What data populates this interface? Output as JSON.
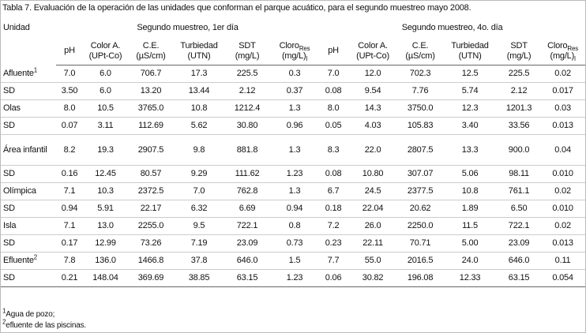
{
  "caption": "Tabla 7. Evaluación de la operación de las unidades que conforman el parque acuático, para el segundo muestreo mayo 2008.",
  "table": {
    "first_header": "Unidad",
    "groups": [
      {
        "title": "Segundo muestreo, 1er día",
        "columns": [
          {
            "name": "pH"
          },
          {
            "name": "Color A.",
            "unit": "(UPt-Co)"
          },
          {
            "name": "C.E.",
            "unit": "(µS/cm)"
          },
          {
            "name": "Turbiedad",
            "unit": "(UTN)"
          },
          {
            "name": "SDT",
            "unit": "(mg/L)"
          },
          {
            "name": "Cloro",
            "sub": "Res",
            "unit": "(mg/L)",
            "unit_sub": "l"
          }
        ]
      },
      {
        "title": "Segundo muestreo, 4o. día",
        "columns": [
          {
            "name": "pH"
          },
          {
            "name": "Color A.",
            "unit": "(UPt-Co)"
          },
          {
            "name": "C.E.",
            "unit": "(µS/cm)"
          },
          {
            "name": "Turbiedad",
            "unit": "(UTN)"
          },
          {
            "name": "SDT",
            "unit": "(mg/L)"
          },
          {
            "name": "Cloro",
            "sub": "Res",
            "unit": "(mg/L)",
            "unit_sub": "l"
          }
        ]
      }
    ],
    "rows": [
      {
        "label": "Afluente",
        "sup": "1",
        "values": [
          "7.0",
          "6.0",
          "706.7",
          "17.3",
          "225.5",
          "0.3",
          "7.0",
          "12.0",
          "702.3",
          "12.5",
          "225.5",
          "0.02"
        ]
      },
      {
        "label": "SD",
        "values": [
          "3.50",
          "6.0",
          "13.20",
          "13.44",
          "2.12",
          "0.37",
          "0.08",
          "9.54",
          "7.76",
          "5.74",
          "2.12",
          "0.017"
        ]
      },
      {
        "label": "Olas",
        "values": [
          "8.0",
          "10.5",
          "3765.0",
          "10.8",
          "1212.4",
          "1.3",
          "8.0",
          "14.3",
          "3750.0",
          "12.3",
          "1201.3",
          "0.03"
        ]
      },
      {
        "label": "SD",
        "values": [
          "0.07",
          "3.11",
          "112.69",
          "5.62",
          "30.80",
          "0.96",
          "0.05",
          "4.03",
          "105.83",
          "3.40",
          "33.56",
          "0.013"
        ]
      },
      {
        "label": "Área infantil",
        "values": [
          "8.2",
          "19.3",
          "2907.5",
          "9.8",
          "881.8",
          "1.3",
          "8.3",
          "22.0",
          "2807.5",
          "13.3",
          "900.0",
          "0.04"
        ]
      },
      {
        "label": "SD",
        "values": [
          "0.16",
          "12.45",
          "80.57",
          "9.29",
          "111.62",
          "1.23",
          "0.08",
          "10.80",
          "307.07",
          "5.06",
          "98.11",
          "0.010"
        ]
      },
      {
        "label": "Olímpica",
        "values": [
          "7.1",
          "10.3",
          "2372.5",
          "7.0",
          "762.8",
          "1.3",
          "6.7",
          "24.5",
          "2377.5",
          "10.8",
          "761.1",
          "0.02"
        ]
      },
      {
        "label": "SD",
        "values": [
          "0.94",
          "5.91",
          "22.17",
          "6.32",
          "6.69",
          "0.94",
          "0.18",
          "22.04",
          "20.62",
          "1.89",
          "6.50",
          "0.010"
        ]
      },
      {
        "label": "Isla",
        "values": [
          "7.1",
          "13.0",
          "2255.0",
          "9.5",
          "722.1",
          "0.8",
          "7.2",
          "26.0",
          "2250.0",
          "11.5",
          "722.1",
          "0.02"
        ]
      },
      {
        "label": "SD",
        "values": [
          "0.17",
          "12.99",
          "73.26",
          "7.19",
          "23.09",
          "0.73",
          "0.23",
          "22.11",
          "70.71",
          "5.00",
          "23.09",
          "0.013"
        ]
      },
      {
        "label": "Efluente",
        "sup": "2",
        "values": [
          "7.8",
          "136.0",
          "1466.8",
          "37.8",
          "646.0",
          "1.5",
          "7.7",
          "55.0",
          "2016.5",
          "24.0",
          "646.0",
          "0.11"
        ]
      },
      {
        "label": "SD",
        "values": [
          "0.21",
          "148.04",
          "369.69",
          "38.85",
          "63.15",
          "1.23",
          "0.06",
          "30.82",
          "196.08",
          "12.33",
          "63.15",
          "0.054"
        ]
      }
    ]
  },
  "footnotes": [
    {
      "mark": "1",
      "text": "Agua de pozo;"
    },
    {
      "mark": "2",
      "text": "efluente de las piscinas."
    }
  ]
}
